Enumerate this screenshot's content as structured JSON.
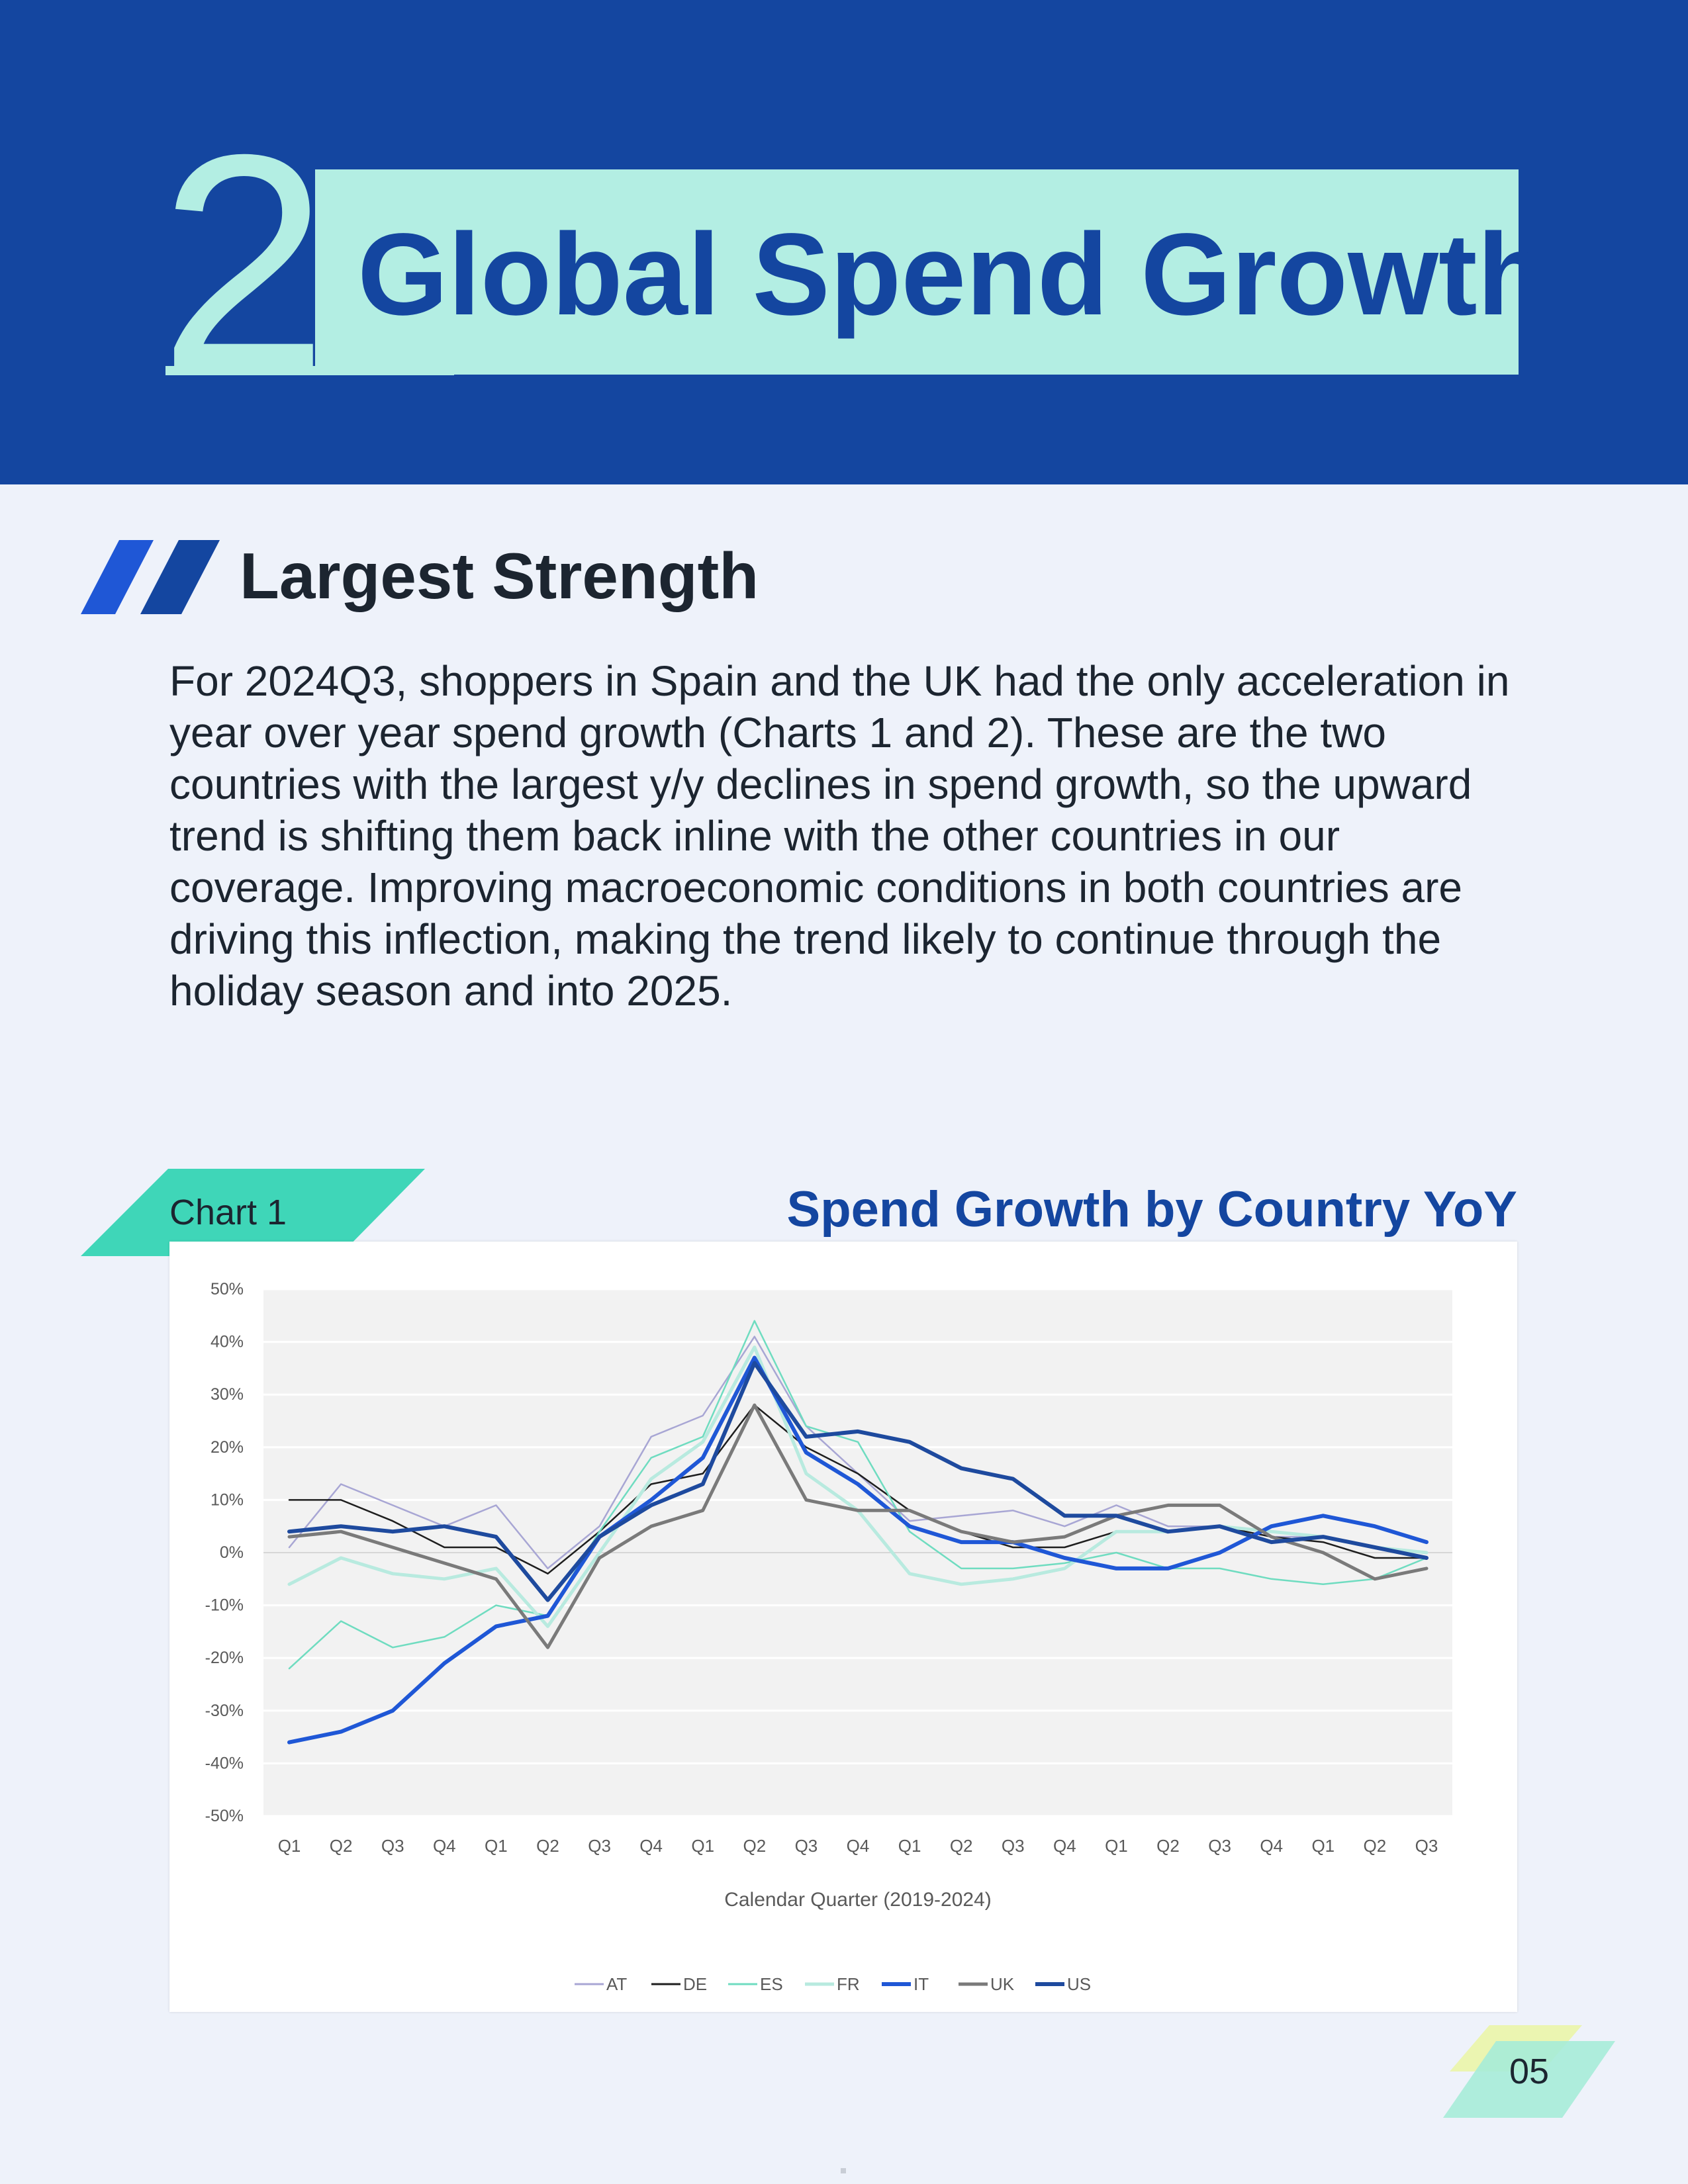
{
  "header": {
    "chapter_number": "2",
    "title": "Global Spend Growth"
  },
  "section": {
    "heading": "Largest Strength",
    "paragraph": "For 2024Q3, shoppers in Spain and the UK had the only acceleration in year over year spend growth (Charts 1 and 2). These are the two countries with the largest y/y declines in spend growth, so the upward trend is shifting them back inline with the other countries in our coverage. Improving macroeconomic conditions in both countries are driving this inflection, making the trend likely to continue through the holiday season and into 2025."
  },
  "chart_tag": "Chart 1",
  "chart_title": "Spend Growth by Country YoY",
  "page_number": "05",
  "colors": {
    "header_blue": "#1446a0",
    "mint": "#b3eee3",
    "tag_green": "#3fd6b8",
    "page_bg": "#eef2fa"
  },
  "chart_data": {
    "type": "line",
    "title": "Spend Growth by Country YoY",
    "xlabel": "Calendar Quarter (2019-2024)",
    "ylabel": "",
    "ylim": [
      -50,
      50
    ],
    "yticks": [
      "-50%",
      "-40%",
      "-30%",
      "-20%",
      "-10%",
      "0%",
      "10%",
      "20%",
      "30%",
      "40%",
      "50%"
    ],
    "categories": [
      "Q1",
      "Q2",
      "Q3",
      "Q4",
      "Q1",
      "Q2",
      "Q3",
      "Q4",
      "Q1",
      "Q2",
      "Q3",
      "Q4",
      "Q1",
      "Q2",
      "Q3",
      "Q4",
      "Q1",
      "Q2",
      "Q3",
      "Q4",
      "Q1",
      "Q2",
      "Q3"
    ],
    "legend_position": "bottom",
    "grid": true,
    "series": [
      {
        "name": "AT",
        "color": "#a8a6d4",
        "width": 2.5,
        "values": [
          1,
          13,
          9,
          5,
          9,
          -3,
          5,
          22,
          26,
          41,
          24,
          15,
          6,
          7,
          8,
          5,
          9,
          5,
          5,
          3,
          3,
          1,
          -1
        ]
      },
      {
        "name": "DE",
        "color": "#1e1e1e",
        "width": 2.5,
        "values": [
          10,
          10,
          6,
          1,
          1,
          -4,
          4,
          13,
          15,
          28,
          20,
          15,
          8,
          4,
          1,
          1,
          4,
          4,
          5,
          3,
          2,
          -1,
          -1
        ]
      },
      {
        "name": "ES",
        "color": "#6fdcc0",
        "width": 2.5,
        "values": [
          -22,
          -13,
          -18,
          -16,
          -10,
          -12,
          4,
          18,
          22,
          44,
          24,
          21,
          4,
          -3,
          -3,
          -2,
          0,
          -3,
          -3,
          -5,
          -6,
          -5,
          -1
        ]
      },
      {
        "name": "FR",
        "color": "#b8eadf",
        "width": 5,
        "values": [
          -6,
          -1,
          -4,
          -5,
          -3,
          -14,
          0,
          14,
          21,
          39,
          15,
          8,
          -4,
          -6,
          -5,
          -3,
          4,
          4,
          5,
          4,
          3,
          1,
          0
        ]
      },
      {
        "name": "IT",
        "color": "#1f57d6",
        "width": 6,
        "values": [
          -36,
          -34,
          -30,
          -21,
          -14,
          -12,
          3,
          10,
          18,
          37,
          19,
          13,
          5,
          2,
          2,
          -1,
          -3,
          -3,
          0,
          5,
          7,
          5,
          2
        ]
      },
      {
        "name": "UK",
        "color": "#7a7a7a",
        "width": 5,
        "values": [
          3,
          4,
          1,
          -2,
          -5,
          -18,
          -1,
          5,
          8,
          28,
          10,
          8,
          8,
          4,
          2,
          3,
          7,
          9,
          9,
          3,
          0,
          -5,
          -3
        ]
      },
      {
        "name": "US",
        "color": "#1e4a9e",
        "width": 6,
        "values": [
          4,
          5,
          4,
          5,
          3,
          -9,
          3,
          9,
          13,
          36,
          22,
          23,
          21,
          16,
          14,
          7,
          7,
          4,
          5,
          2,
          3,
          1,
          -1
        ]
      }
    ]
  }
}
